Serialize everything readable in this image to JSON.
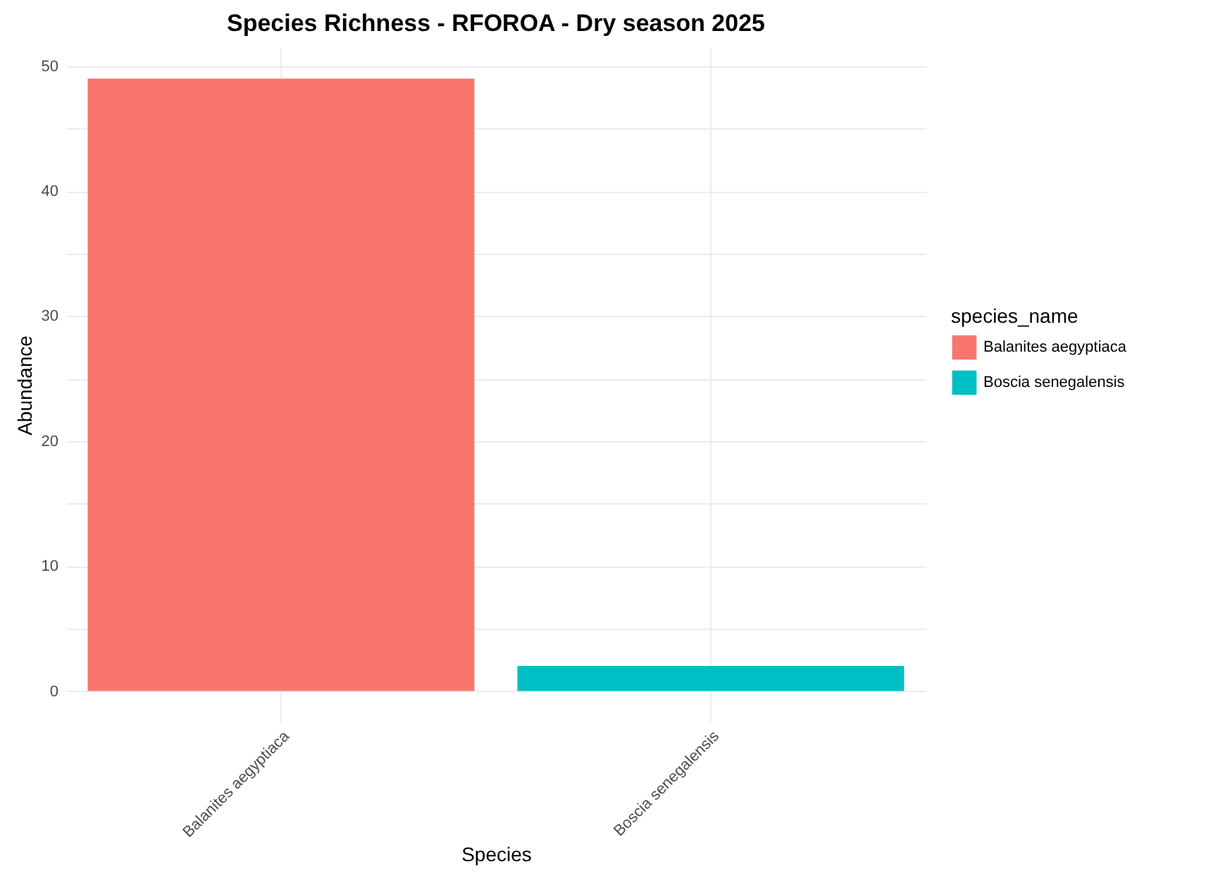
{
  "chart_data": {
    "type": "bar",
    "title": "Species Richness - RFOROA - Dry season 2025",
    "xlabel": "Species",
    "ylabel": "Abundance",
    "legend_title": "species_name",
    "categories": [
      "Balanites aegyptiaca",
      "Boscia senegalensis"
    ],
    "series": [
      {
        "name": "Balanites aegyptiaca",
        "color": "#f8766d",
        "values": [
          49,
          null
        ]
      },
      {
        "name": "Boscia senegalensis",
        "color": "#00bfc4",
        "values": [
          null,
          2
        ]
      }
    ],
    "ylim": [
      -2.45,
      51.45
    ],
    "yticks": [
      0,
      {
        "value": 5,
        "label": null
      },
      10,
      {
        "value": 15,
        "label": null
      },
      20,
      {
        "value": 25,
        "label": null
      },
      30,
      {
        "value": 35,
        "label": null
      },
      40,
      {
        "value": 45,
        "label": null
      },
      50
    ],
    "grid": true,
    "legend": "right"
  }
}
